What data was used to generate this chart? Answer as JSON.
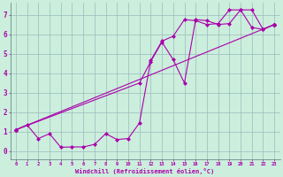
{
  "xlabel": "Windchill (Refroidissement éolien,°C)",
  "bg_color": "#cceedd",
  "line_color": "#aa00aa",
  "grid_color": "#99bbbb",
  "xlim": [
    -0.5,
    23.5
  ],
  "ylim": [
    -0.4,
    7.6
  ],
  "xticks": [
    0,
    1,
    2,
    3,
    4,
    5,
    6,
    7,
    8,
    9,
    10,
    11,
    12,
    13,
    14,
    15,
    16,
    17,
    18,
    19,
    20,
    21,
    22,
    23
  ],
  "yticks": [
    0,
    1,
    2,
    3,
    4,
    5,
    6,
    7
  ],
  "line1_x": [
    0,
    1,
    2,
    3,
    4,
    5,
    6,
    7,
    8,
    9,
    10,
    11,
    12,
    13,
    14,
    15,
    16,
    17,
    18,
    19,
    20,
    21,
    22,
    23
  ],
  "line1_y": [
    1.1,
    1.35,
    0.65,
    0.9,
    0.2,
    0.22,
    0.22,
    0.35,
    0.9,
    0.6,
    0.65,
    1.45,
    4.65,
    5.65,
    5.9,
    6.75,
    6.7,
    6.5,
    6.55,
    7.25,
    7.25,
    6.35,
    6.25,
    6.5
  ],
  "line2_x": [
    0,
    11,
    12,
    13,
    14,
    15,
    16,
    17,
    18,
    19,
    20,
    21,
    22,
    23
  ],
  "line2_y": [
    1.1,
    3.5,
    4.6,
    5.6,
    4.7,
    3.5,
    6.75,
    6.7,
    6.5,
    6.55,
    7.25,
    7.25,
    6.25,
    6.5
  ],
  "line3_x": [
    0,
    23
  ],
  "line3_y": [
    1.1,
    6.5
  ]
}
